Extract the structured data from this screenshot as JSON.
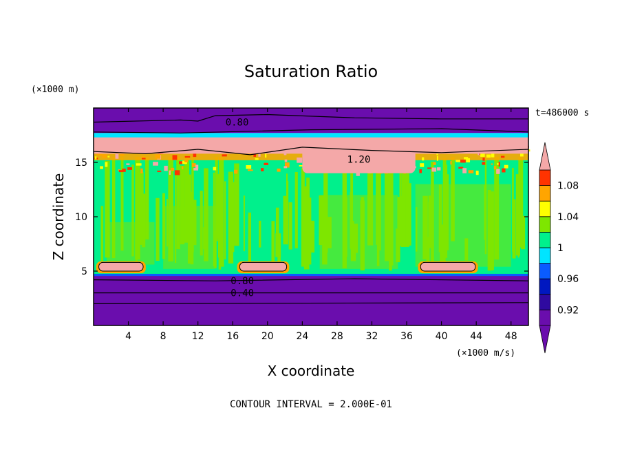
{
  "chart_data": {
    "type": "heatmap",
    "title": "Saturation Ratio",
    "xlabel": "X coordinate",
    "ylabel": "Z coordinate",
    "x_unit": "(×1000 m/s)",
    "y_unit": "(×1000 m)",
    "time_label": "t=486000 s",
    "footer": "CONTOUR INTERVAL = 2.000E-01",
    "xlim": [
      0,
      50
    ],
    "ylim": [
      0,
      20
    ],
    "x_ticks": [
      4,
      8,
      12,
      16,
      20,
      24,
      28,
      32,
      36,
      40,
      44,
      48
    ],
    "y_ticks": [
      5,
      10,
      15
    ],
    "colorbar": {
      "levels": [
        0.9,
        0.92,
        0.94,
        0.96,
        0.98,
        1.0,
        1.02,
        1.04,
        1.06,
        1.08,
        1.1
      ],
      "tick_labels": [
        "0.92",
        "0.96",
        "1",
        "1.04",
        "1.08"
      ],
      "tick_values": [
        0.92,
        0.96,
        1.0,
        1.04,
        1.08
      ],
      "colors": [
        "#6a0dad",
        "#2f0aa0",
        "#0018c0",
        "#0a5cff",
        "#00e5ff",
        "#00f08c",
        "#7ee600",
        "#ffff00",
        "#ffa500",
        "#ff3300",
        "#f4a8a8"
      ]
    },
    "contour_labels": [
      {
        "text": "0.80",
        "x": 16.5,
        "y": 18.7
      },
      {
        "text": "1.20",
        "x": 30.5,
        "y": 15.3
      },
      {
        "text": "0.80",
        "x": 17.1,
        "y": 4.1
      },
      {
        "text": "0.40",
        "x": 17.1,
        "y": 3.0
      }
    ]
  }
}
